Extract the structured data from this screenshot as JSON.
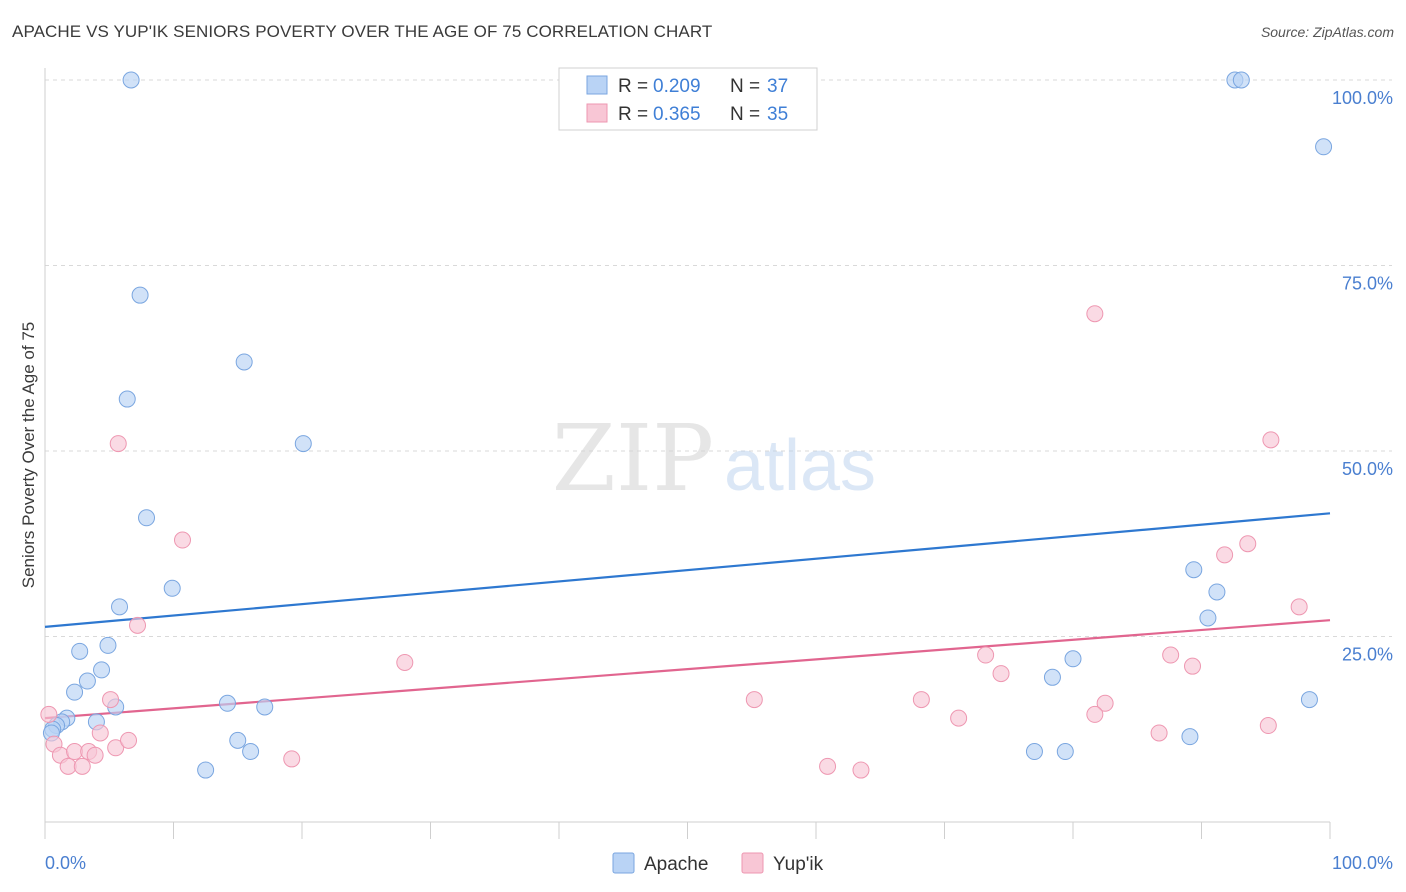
{
  "title": "APACHE VS YUP'IK SENIORS POVERTY OVER THE AGE OF 75 CORRELATION CHART",
  "source": "Source: ZipAtlas.com",
  "watermark": {
    "zip": "ZIP",
    "atlas": "atlas"
  },
  "legend_stats": [
    {
      "r_label": "R =",
      "r_value": "0.209",
      "n_label": "N =",
      "n_value": "37"
    },
    {
      "r_label": "R =",
      "r_value": "0.365",
      "n_label": "N =",
      "n_value": "35"
    }
  ],
  "colors": {
    "apache_fill": "#b9d3f5",
    "apache_stroke": "#7aa6e0",
    "apache_line": "#2e78d0",
    "yupik_fill": "#f8c6d5",
    "yupik_stroke": "#ee97b1",
    "yupik_line": "#e1658f",
    "tick_label": "#4a7fd0",
    "grid": "#d9d9d9"
  },
  "chart_data": {
    "type": "scatter",
    "ylabel": "Seniors Poverty Over the Age of 75",
    "xlim": [
      0,
      100
    ],
    "ylim": [
      0,
      100
    ],
    "x_tick_labels": [
      "0.0%",
      "100.0%"
    ],
    "y_ticks": [
      25,
      50,
      75,
      100
    ],
    "y_tick_labels": [
      "25.0%",
      "50.0%",
      "75.0%",
      "100.0%"
    ],
    "legend_position": "top-center",
    "series": [
      {
        "name": "Apache",
        "points": [
          [
            6.7,
            100
          ],
          [
            92.6,
            100
          ],
          [
            93.1,
            100
          ],
          [
            99.5,
            91
          ],
          [
            7.4,
            71
          ],
          [
            15.5,
            62
          ],
          [
            6.4,
            57
          ],
          [
            20.1,
            51
          ],
          [
            7.9,
            41
          ],
          [
            9.9,
            31.5
          ],
          [
            5.8,
            29
          ],
          [
            2.7,
            23
          ],
          [
            4.9,
            23.8
          ],
          [
            4.4,
            20.5
          ],
          [
            3.3,
            19
          ],
          [
            2.3,
            17.5
          ],
          [
            5.5,
            15.5
          ],
          [
            1.7,
            14
          ],
          [
            1.3,
            13.5
          ],
          [
            0.9,
            13
          ],
          [
            0.6,
            12.5
          ],
          [
            0.5,
            12
          ],
          [
            4.0,
            13.5
          ],
          [
            14.2,
            16
          ],
          [
            17.1,
            15.5
          ],
          [
            15.0,
            11
          ],
          [
            16.0,
            9.5
          ],
          [
            12.5,
            7
          ],
          [
            89.4,
            34
          ],
          [
            90.5,
            27.5
          ],
          [
            91.2,
            31
          ],
          [
            80.0,
            22
          ],
          [
            78.4,
            19.5
          ],
          [
            79.4,
            9.5
          ],
          [
            77.0,
            9.5
          ],
          [
            89.1,
            11.5
          ],
          [
            98.4,
            16.5
          ]
        ]
      },
      {
        "name": "Yup'ik",
        "points": [
          [
            5.7,
            51
          ],
          [
            10.7,
            38
          ],
          [
            7.2,
            26.5
          ],
          [
            28.0,
            21.5
          ],
          [
            5.1,
            16.5
          ],
          [
            0.3,
            14.5
          ],
          [
            0.7,
            10.5
          ],
          [
            1.2,
            9
          ],
          [
            1.8,
            7.5
          ],
          [
            2.3,
            9.5
          ],
          [
            2.9,
            7.5
          ],
          [
            3.4,
            9.5
          ],
          [
            3.9,
            9
          ],
          [
            4.3,
            12
          ],
          [
            5.5,
            10
          ],
          [
            6.5,
            11
          ],
          [
            19.2,
            8.5
          ],
          [
            55.2,
            16.5
          ],
          [
            60.9,
            7.5
          ],
          [
            63.5,
            7
          ],
          [
            68.2,
            16.5
          ],
          [
            71.1,
            14
          ],
          [
            73.2,
            22.5
          ],
          [
            74.4,
            20
          ],
          [
            82.5,
            16
          ],
          [
            81.7,
            14.5
          ],
          [
            81.7,
            68.5
          ],
          [
            86.7,
            12
          ],
          [
            87.6,
            22.5
          ],
          [
            89.3,
            21
          ],
          [
            91.8,
            36
          ],
          [
            93.6,
            37.5
          ],
          [
            95.2,
            13
          ],
          [
            97.6,
            29
          ],
          [
            95.4,
            51.5
          ]
        ]
      }
    ],
    "trendlines": [
      {
        "series": "Apache",
        "x": [
          0,
          100
        ],
        "y": [
          26.3,
          41.6
        ]
      },
      {
        "series": "Yup'ik",
        "x": [
          0,
          100
        ],
        "y": [
          14.0,
          27.2
        ]
      }
    ]
  }
}
